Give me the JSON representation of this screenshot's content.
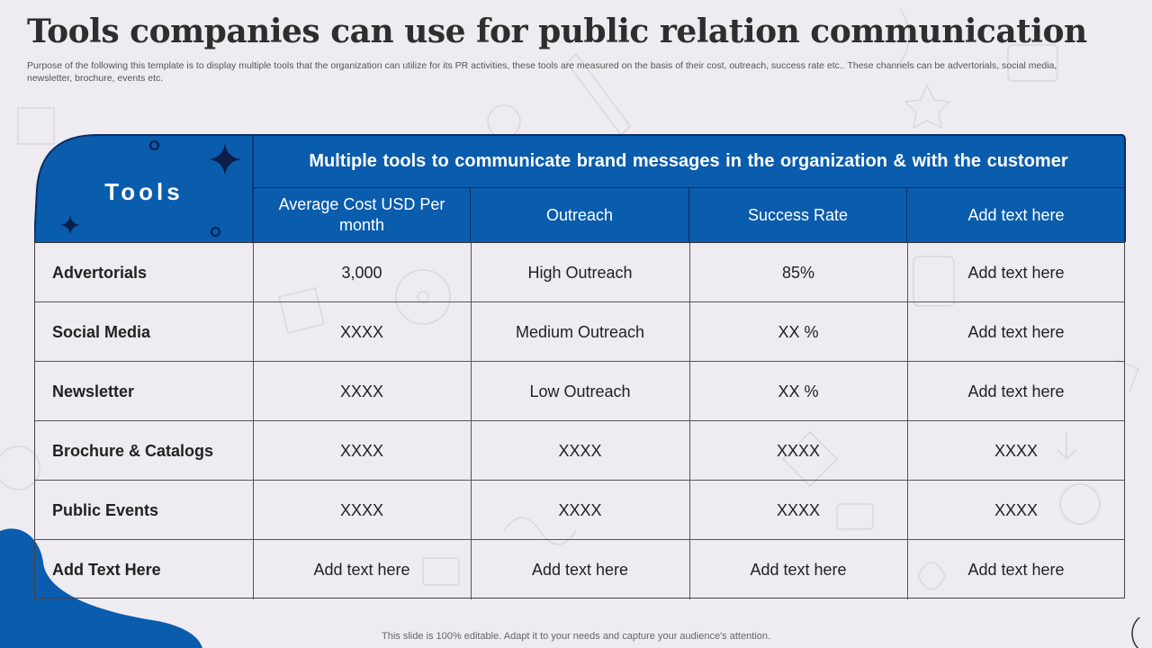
{
  "title": "Tools companies can use for public relation communication",
  "subtitle": "Purpose of the following this template is to display multiple tools that the organization can utilize for its PR activities, these tools are measured on the basis of their cost, outreach, success rate etc.. These channels can be advertorials, social media, newsletter, brochure, events etc.",
  "table": {
    "corner_label": "Tools",
    "banner": "Multiple  tools to communicate brand messages in the organization & with the customer",
    "columns": [
      "Average Cost USD Per month",
      "Outreach",
      "Success Rate",
      "Add text here"
    ],
    "rows": [
      [
        "Advertorials",
        "3,000",
        "High Outreach",
        "85%",
        "Add text here"
      ],
      [
        "Social Media",
        "XXXX",
        "Medium Outreach",
        "XX %",
        "Add text here"
      ],
      [
        "Newsletter",
        "XXXX",
        "Low Outreach",
        "XX %",
        "Add text here"
      ],
      [
        "Brochure & Catalogs",
        "XXXX",
        "XXXX",
        "XXXX",
        "XXXX"
      ],
      [
        "Public Events",
        "XXXX",
        "XXXX",
        "XXXX",
        "XXXX"
      ],
      [
        "Add Text Here",
        "Add text here",
        "Add text here",
        "Add text here",
        "Add text here"
      ]
    ]
  },
  "footer": "This slide is 100% editable. Adapt it to your needs and capture your audience's attention.",
  "colors": {
    "accent_blue": "#0a5cad",
    "background": "#eeebf1",
    "dark_navy": "#0b1f4a"
  }
}
